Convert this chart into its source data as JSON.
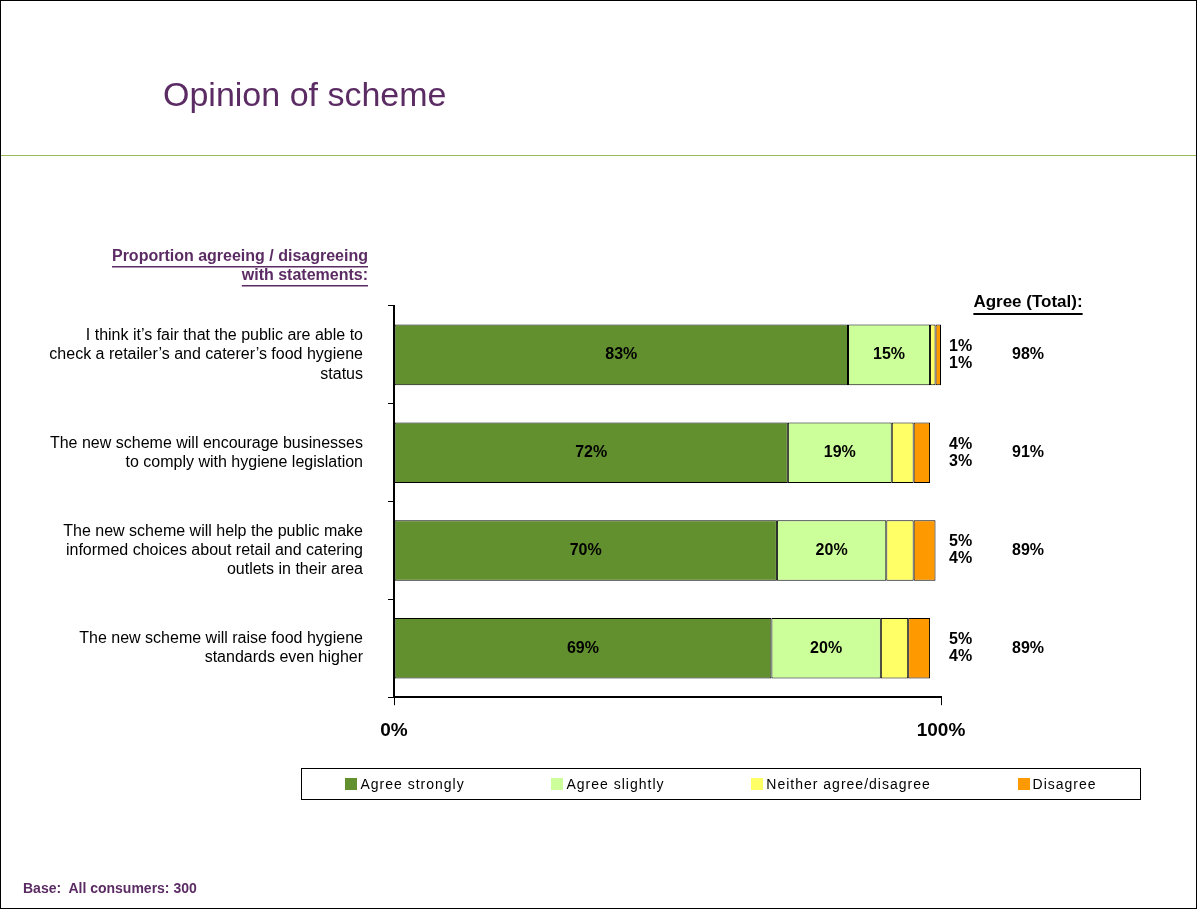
{
  "chart_data": {
    "type": "bar",
    "orientation": "horizontal",
    "stacked": true,
    "title": "Opinion of scheme",
    "ylabel": "Proportion agreeing / disagreeing with statements:",
    "categories": [
      "I think it’s fair that the public are able to check a retailer’s and caterer’s food hygiene status",
      "The new scheme will encourage businesses to comply with hygiene legislation",
      "The new scheme will help the public make informed choices about retail and catering outlets in their area",
      "The new scheme will raise food hygiene standards even higher"
    ],
    "series": [
      {
        "name": "Agree strongly",
        "color": "#62902f",
        "values": [
          83,
          72,
          70,
          69
        ],
        "value_labels": [
          "83%",
          "72%",
          "70%",
          "69%"
        ]
      },
      {
        "name": "Agree slightly",
        "color": "#ccff99",
        "values": [
          15,
          19,
          20,
          20
        ],
        "value_labels": [
          "15%",
          "19%",
          "20%",
          "20%"
        ]
      },
      {
        "name": "Neither agree/disagree",
        "color": "#ffff66",
        "values": [
          1,
          4,
          5,
          5
        ],
        "value_labels": [
          "1%",
          "4%",
          "5%",
          "5%"
        ]
      },
      {
        "name": "Disagree",
        "color": "#ff9900",
        "values": [
          1,
          3,
          4,
          4
        ],
        "value_labels": [
          "1%",
          "3%",
          "4%",
          "4%"
        ]
      }
    ],
    "xlim": [
      0,
      100
    ],
    "xticks": [
      {
        "value": 0,
        "label": "0%"
      },
      {
        "value": 100,
        "label": "100%"
      }
    ],
    "grid": false,
    "legend": "bottom",
    "annotations": [
      "Agree (Total):",
      "Base:  All consumers: 300",
      "98%",
      "91%",
      "89%",
      "89%"
    ]
  }
}
